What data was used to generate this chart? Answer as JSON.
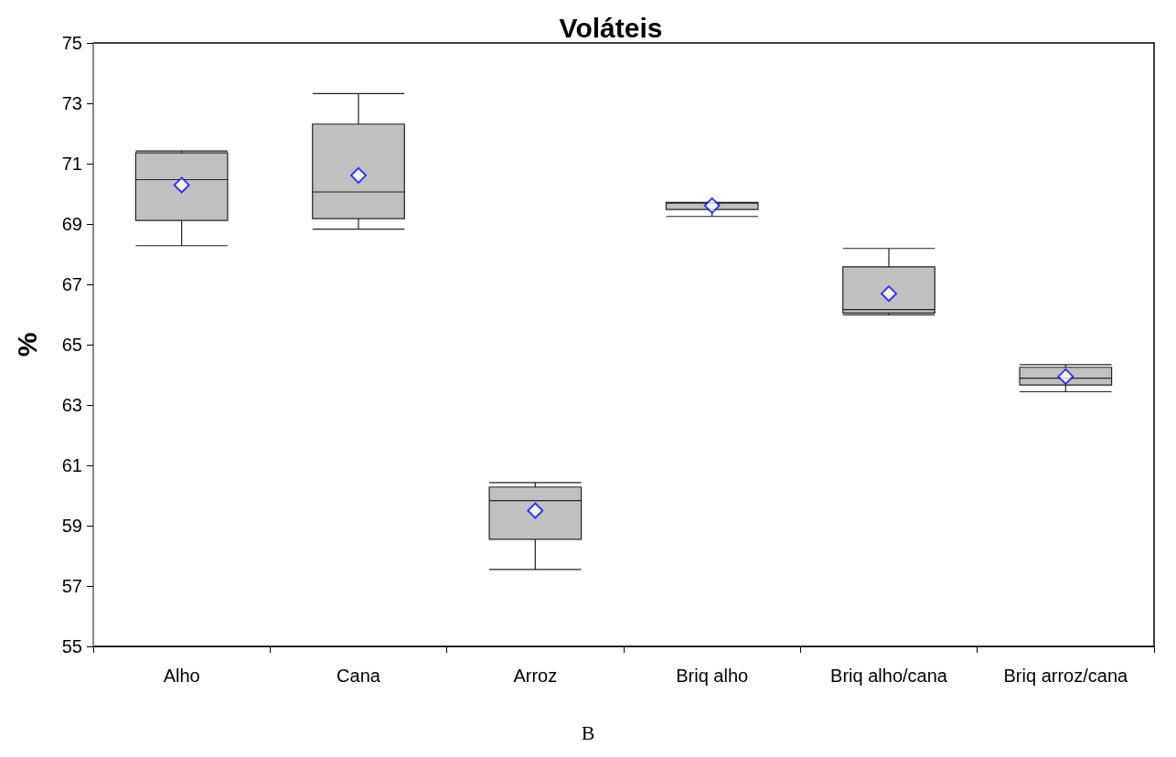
{
  "chart_data": {
    "type": "box",
    "title": "Voláteis",
    "ylabel": "%",
    "categories": [
      "Alho",
      "Cana",
      "Arroz",
      "Briq alho",
      "Briq alho/cana",
      "Briq arroz/cana"
    ],
    "color": "#c0c0c0",
    "marker": "diamond",
    "boxes": [
      {
        "low": 68.28,
        "q1": 69.12,
        "median": 70.47,
        "q3": 71.36,
        "high": 71.42,
        "mean": 70.29
      },
      {
        "low": 68.83,
        "q1": 69.18,
        "median": 70.06,
        "q3": 72.31,
        "high": 73.32,
        "mean": 70.61
      },
      {
        "low": 57.55,
        "q1": 58.55,
        "median": 59.83,
        "q3": 60.28,
        "high": 60.43,
        "mean": 59.5
      },
      {
        "low": 69.25,
        "q1": 69.48,
        "median": 69.69,
        "q3": 69.72,
        "high": 69.72,
        "mean": 69.61
      },
      {
        "low": 65.99,
        "q1": 66.05,
        "median": 66.16,
        "q3": 67.58,
        "high": 68.19,
        "mean": 66.69
      },
      {
        "low": 63.44,
        "q1": 63.66,
        "median": 63.89,
        "q3": 64.25,
        "high": 64.34,
        "mean": 63.94
      }
    ],
    "ylim": [
      55,
      75
    ],
    "yticks": [
      55,
      57,
      59,
      61,
      63,
      65,
      67,
      69,
      71,
      73,
      75
    ],
    "grid": false,
    "annotations": [
      "B"
    ]
  }
}
